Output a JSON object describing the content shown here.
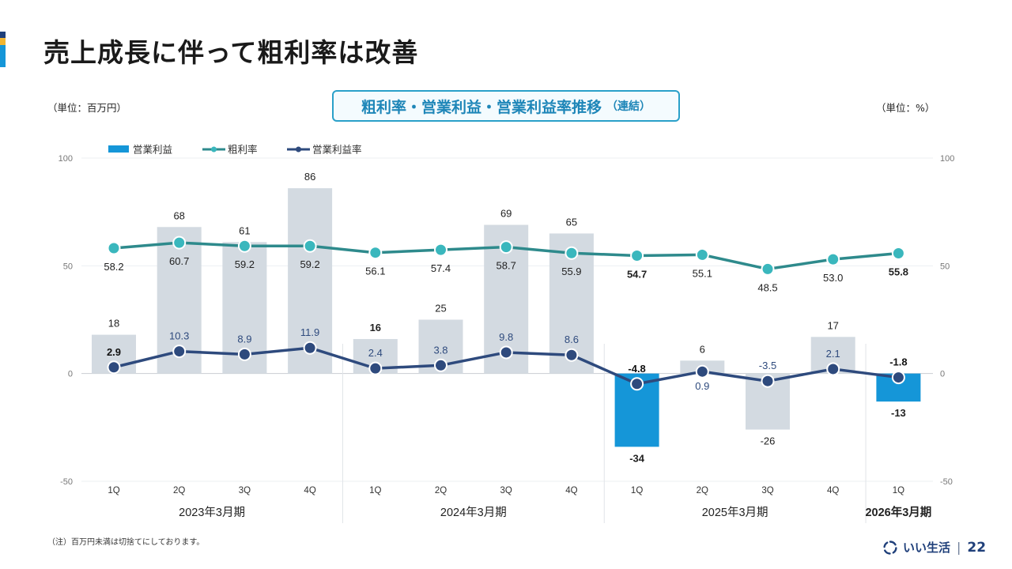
{
  "page": {
    "title": "売上成長に伴って粗利率は改善",
    "unit_left": "（単位：百万円）",
    "unit_right": "（単位：%）",
    "footnote": "（注）百万円未満は切捨てにしております。",
    "page_number": "22",
    "brand_name": "いい生活"
  },
  "chart_title": {
    "main": "粗利率・営業利益・営業利益率推移",
    "sub": "（連結）"
  },
  "colors": {
    "bar_default": "#d3dae1",
    "bar_highlight": "#1596d8",
    "gross_margin_line": "#2e8a8c",
    "gross_margin_marker": "#3ab7bd",
    "op_margin_line": "#2e4a7d",
    "accent_top": "#1f3f7a",
    "accent_mid": "#f2b632",
    "accent_bottom": "#1596d8",
    "chart_title": "#1e86b8"
  },
  "chart_data": {
    "type": "bar",
    "categories": [
      "1Q",
      "2Q",
      "3Q",
      "4Q",
      "1Q",
      "2Q",
      "3Q",
      "4Q",
      "1Q",
      "2Q",
      "3Q",
      "4Q",
      "1Q"
    ],
    "periods": [
      {
        "label": "2023年3月期",
        "start": 0,
        "end": 3,
        "bold": false
      },
      {
        "label": "2024年3月期",
        "start": 4,
        "end": 7,
        "bold": false
      },
      {
        "label": "2025年3月期",
        "start": 8,
        "end": 11,
        "bold": false
      },
      {
        "label": "2026年3月期",
        "start": 12,
        "end": 12,
        "bold": true
      }
    ],
    "ylim": [
      -50,
      100
    ],
    "y2lim": [
      -50,
      100
    ],
    "yticks": [
      100,
      50,
      0,
      -50
    ],
    "legend": [
      "営業利益",
      "粗利率",
      "営業利益率"
    ],
    "legend_position": "top-left",
    "series": [
      {
        "name": "営業利益",
        "type": "bar",
        "values": [
          18,
          68,
          61,
          86,
          16,
          25,
          69,
          65,
          -34,
          6,
          -26,
          17,
          -13
        ],
        "labels": [
          "18",
          "68",
          "61",
          "86",
          "16",
          "25",
          "69",
          "65",
          "-34",
          "6",
          "-26",
          "17",
          "-13"
        ],
        "bold": [
          false,
          false,
          false,
          false,
          true,
          false,
          false,
          false,
          true,
          false,
          false,
          false,
          true
        ],
        "highlight": [
          false,
          false,
          false,
          false,
          false,
          false,
          false,
          false,
          true,
          false,
          false,
          false,
          true
        ]
      },
      {
        "name": "粗利率",
        "type": "line",
        "values": [
          58.2,
          60.7,
          59.2,
          59.2,
          56.1,
          57.4,
          58.7,
          55.9,
          54.7,
          55.1,
          48.5,
          53.0,
          55.8
        ],
        "labels": [
          "58.2",
          "60.7",
          "59.2",
          "59.2",
          "56.1",
          "57.4",
          "58.7",
          "55.9",
          "54.7",
          "55.1",
          "48.5",
          "53.0",
          "55.8"
        ],
        "bold": [
          false,
          false,
          false,
          false,
          false,
          false,
          false,
          false,
          true,
          false,
          false,
          false,
          true
        ]
      },
      {
        "name": "営業利益率",
        "type": "line",
        "values": [
          2.9,
          10.3,
          8.9,
          11.9,
          2.4,
          3.8,
          9.8,
          8.6,
          -4.8,
          0.9,
          -3.5,
          2.1,
          -1.8
        ],
        "labels": [
          "2.9",
          "10.3",
          "8.9",
          "11.9",
          "2.4",
          "3.8",
          "9.8",
          "8.6",
          "-4.8",
          "0.9",
          "-3.5",
          "2.1",
          "-1.8"
        ],
        "bold": [
          true,
          false,
          false,
          false,
          false,
          false,
          false,
          false,
          true,
          false,
          false,
          false,
          true
        ]
      }
    ]
  }
}
